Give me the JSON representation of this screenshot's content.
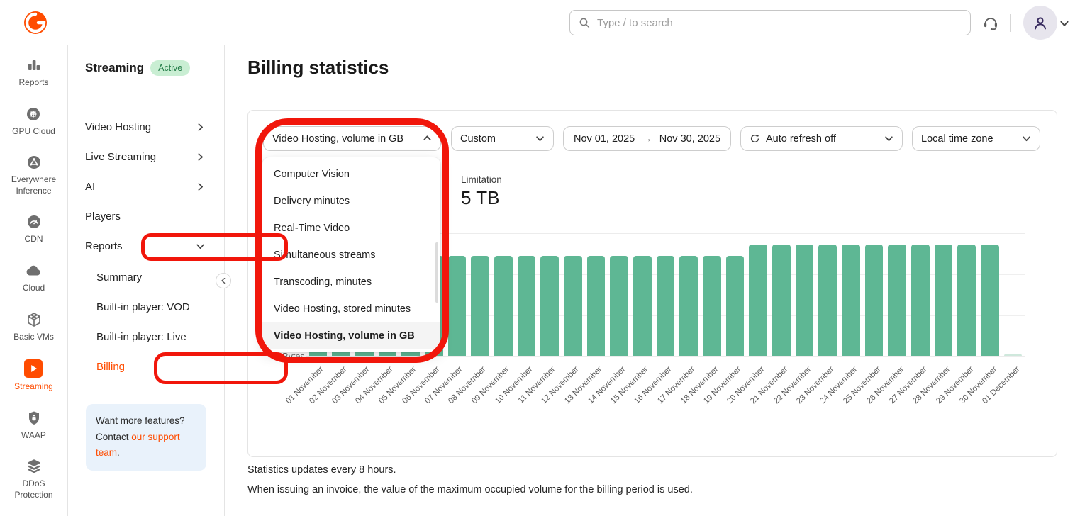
{
  "header": {
    "search_placeholder": "Type / to search"
  },
  "icon_rail": {
    "items": [
      {
        "label": "Reports",
        "icon": "bar-chart-icon",
        "active": false
      },
      {
        "label": "GPU Cloud",
        "icon": "gpu-chip-icon",
        "active": false
      },
      {
        "label": "Everywhere Inference",
        "icon": "inference-network-icon",
        "active": false
      },
      {
        "label": "CDN",
        "icon": "speedometer-icon",
        "active": false
      },
      {
        "label": "Cloud",
        "icon": "cloud-icon",
        "active": false
      },
      {
        "label": "Basic VMs",
        "icon": "cube-icon",
        "active": false
      },
      {
        "label": "Streaming",
        "icon": "play-icon",
        "active": true
      },
      {
        "label": "WAAP",
        "icon": "shield-lock-icon",
        "active": false
      },
      {
        "label": "DDoS Protection",
        "icon": "layers-icon",
        "active": false
      },
      {
        "label": "",
        "icon": "database-icon",
        "active": false
      }
    ]
  },
  "sidebar": {
    "title": "Streaming",
    "badge": "Active",
    "items": [
      {
        "label": "Video Hosting",
        "chevron": "right"
      },
      {
        "label": "Live Streaming",
        "chevron": "right"
      },
      {
        "label": "AI",
        "chevron": "right"
      },
      {
        "label": "Players"
      },
      {
        "label": "Reports",
        "chevron": "down",
        "annotated": true
      },
      {
        "label": "Summary",
        "sub": true
      },
      {
        "label": "Built-in player: VOD",
        "sub": true
      },
      {
        "label": "Built-in player: Live",
        "sub": true
      },
      {
        "label": "Billing",
        "sub": true,
        "active": true,
        "annotated": true
      }
    ],
    "info_box": {
      "text_before": "Want more features? Contact ",
      "link": "our support team",
      "text_after": "."
    }
  },
  "main": {
    "title": "Billing statistics",
    "filters": {
      "metric": "Video Hosting, volume in GB",
      "period": "Custom",
      "date_from": "Nov 01, 2025",
      "date_to": "Nov 30, 2025",
      "auto_refresh": "Auto refresh off",
      "timezone": "Local time zone"
    },
    "dropdown_options": [
      {
        "label": "Computer Vision"
      },
      {
        "label": "Delivery minutes"
      },
      {
        "label": "Real-Time Video"
      },
      {
        "label": "Simultaneous streams"
      },
      {
        "label": "Transcoding, minutes"
      },
      {
        "label": "Video Hosting, stored minutes"
      },
      {
        "label": "Video Hosting, volume in GB",
        "selected": true
      }
    ],
    "limitation": {
      "label": "Limitation",
      "value": "5 TB"
    },
    "notes": [
      "Statistics updates every 8 hours.",
      "When issuing an invoice, the value of the maximum occupied volume for the billing period is used."
    ]
  },
  "chart_data": {
    "type": "bar",
    "title": "",
    "xlabel": "",
    "ylabel": "",
    "categories": [
      "01 November",
      "02 November",
      "03 November",
      "04 November",
      "05 November",
      "06 November",
      "07 November",
      "08 November",
      "09 November",
      "10 November",
      "11 November",
      "12 November",
      "13 November",
      "14 November",
      "15 November",
      "16 November",
      "17 November",
      "18 November",
      "19 November",
      "20 November",
      "21 November",
      "22 November",
      "23 November",
      "24 November",
      "25 November",
      "26 November",
      "27 November",
      "28 November",
      "29 November",
      "30 November",
      "01 December"
    ],
    "values": [
      4.1,
      4.1,
      4.1,
      4.1,
      4.1,
      4.1,
      4.1,
      4.1,
      4.1,
      4.1,
      4.1,
      4.1,
      4.1,
      4.1,
      4.1,
      4.1,
      4.1,
      4.1,
      4.1,
      4.55,
      4.55,
      4.55,
      4.55,
      4.55,
      4.55,
      4.55,
      4.55,
      4.55,
      4.55,
      4.55,
      0.08
    ],
    "unit": "TB",
    "ylim": [
      0,
      5
    ],
    "visible_ytick": "0 Bytes",
    "grid": true,
    "legend": "none",
    "bar_color": "#5eb794",
    "muted_bar_color": "#cfe8dc",
    "xlabel_rotation": -45
  },
  "colors": {
    "brand_orange": "#ff4c00",
    "annotation_red": "#f1160b",
    "badge_green_bg": "#c9eed3",
    "badge_green_text": "#257d49",
    "infobox_blue": "#e9f2fb"
  }
}
